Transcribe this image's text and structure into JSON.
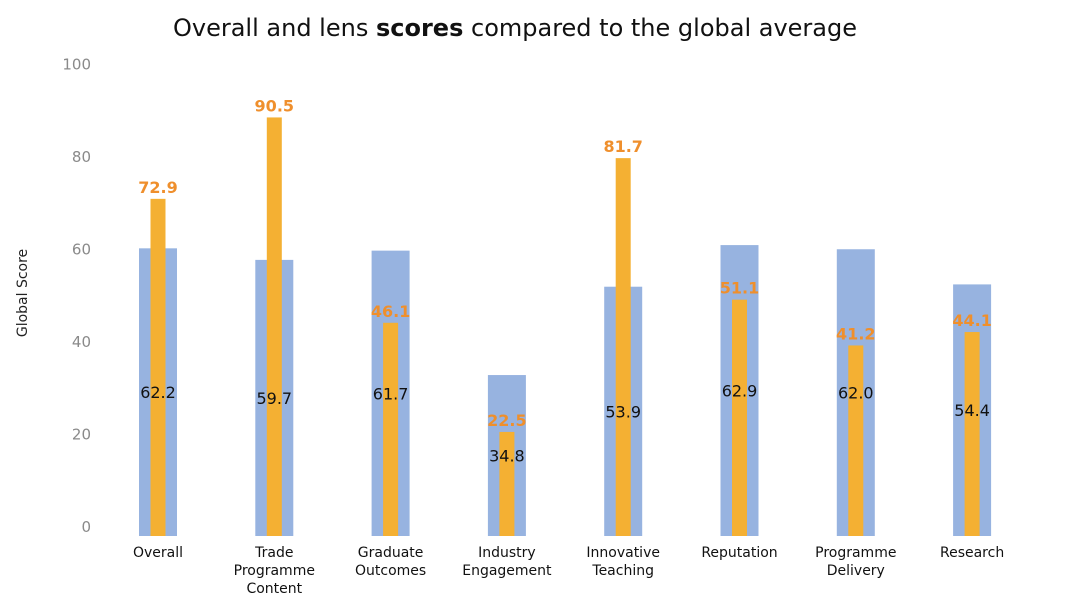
{
  "chart_data": {
    "type": "bar",
    "title": {
      "prefix": "Overall and lens ",
      "bold": "scores",
      "suffix": " compared to the global average"
    },
    "ylabel": "Global Score",
    "xlabel": "",
    "ylim": [
      0,
      100
    ],
    "yticks": [
      0,
      20,
      40,
      60,
      80,
      100
    ],
    "categories": [
      [
        "Overall"
      ],
      [
        "Trade",
        "Programme",
        "Content"
      ],
      [
        "Graduate",
        "Outcomes"
      ],
      [
        "Industry",
        "Engagement"
      ],
      [
        "Innovative",
        "Teaching"
      ],
      [
        "Reputation"
      ],
      [
        "Programme",
        "Delivery"
      ],
      [
        "Research"
      ]
    ],
    "series": [
      {
        "values": [
          62.2,
          59.7,
          61.7,
          34.8,
          53.9,
          62.9,
          62.0,
          54.4
        ],
        "color": "#97b3e0"
      },
      {
        "values": [
          72.9,
          90.5,
          46.1,
          22.5,
          81.7,
          51.1,
          41.2,
          44.1
        ],
        "color": "#f4b033"
      }
    ],
    "label_colors": {
      "global": "#111111",
      "score": "#ef8f2c"
    },
    "grid": false,
    "legend": "none"
  }
}
